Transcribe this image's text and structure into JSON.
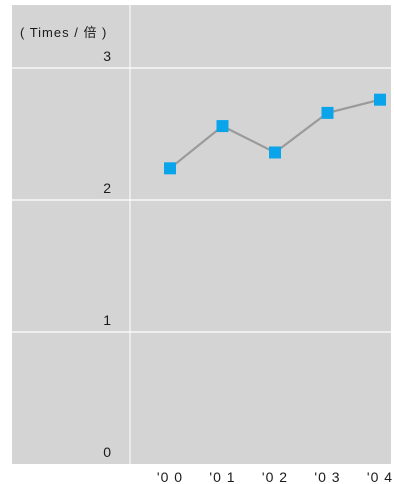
{
  "chart_data": {
    "type": "line",
    "title": "",
    "ylabel": "( Times / 倍 )",
    "xlabel": "",
    "categories": [
      "'0 0",
      "'0 1",
      "'0 2",
      "'0 3",
      "'0 4"
    ],
    "y_ticks": [
      "0",
      "1",
      "2",
      "3"
    ],
    "ylim": [
      0,
      3
    ],
    "grid": true,
    "series": [
      {
        "values": [
          2.24,
          2.56,
          2.36,
          2.66,
          2.76
        ]
      }
    ],
    "colors": {
      "plot_background": "#d4d4d4",
      "gridline": "#ffffff",
      "line": "#9a9a9a",
      "marker": "#0aa4ea",
      "text": "#1a1a1a"
    }
  }
}
